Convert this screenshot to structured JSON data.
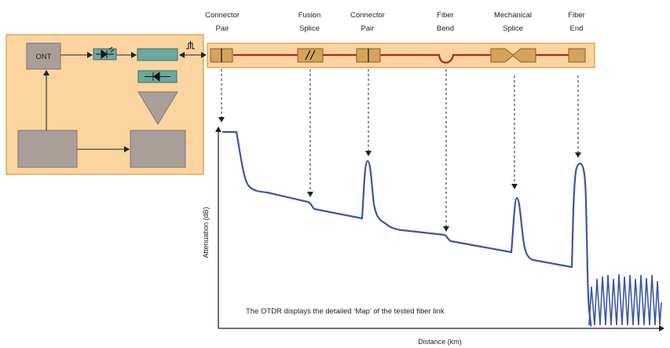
{
  "event_labels": [
    {
      "line1": "Connector",
      "line2": "Pair"
    },
    {
      "line1": "Fusion",
      "line2": "Splice"
    },
    {
      "line1": "Connector",
      "line2": "Pair"
    },
    {
      "line1": "Fiber",
      "line2": "Bend"
    },
    {
      "line1": "Mechanical",
      "line2": "Splice"
    },
    {
      "line1": "Fiber",
      "line2": "End"
    }
  ],
  "otdr_box": {
    "ont_label": "ONT"
  },
  "chart": {
    "ylabel": "Attenuation (dB)",
    "xlabel": "Distance (km)",
    "note": "The OTDR displays the detailed ‘Map’ of the tested fiber link"
  },
  "colors": {
    "panel_fill": "#fbd4a0",
    "panel_stroke": "#d99a3c",
    "fiber": "#b5231e",
    "trace": "#3b55a8",
    "component_gold": "#d4a35c",
    "module_gray": "#a99f98",
    "module_teal": "#6aa8a0"
  }
}
